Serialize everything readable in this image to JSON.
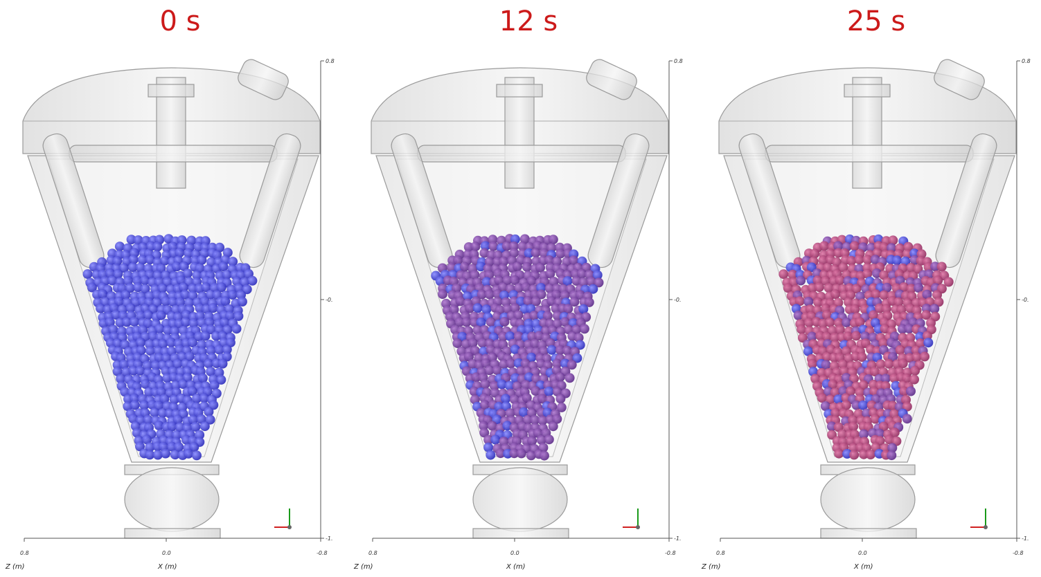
{
  "panels": [
    {
      "title": "0 s",
      "right_ticks": [
        "0.8",
        "-0.",
        "-1."
      ],
      "bottom_ticks": [
        "0.8",
        "0.0",
        "-0.8"
      ],
      "z_label": "Z (m)",
      "x_label": "X (m)"
    },
    {
      "title": "12 s",
      "right_ticks": [
        "0.8",
        "-0.",
        "-1."
      ],
      "bottom_ticks": [
        "0.8",
        "0.0",
        "-0.8"
      ],
      "z_label": "Z (m)",
      "x_label": "X (m)"
    },
    {
      "title": "25 s",
      "right_ticks": [
        "0.8",
        "-0.",
        "-1."
      ],
      "bottom_ticks": [
        "0.8",
        "0.0",
        "-0.8"
      ],
      "z_label": "Z (m)",
      "x_label": "X (m)"
    }
  ]
}
